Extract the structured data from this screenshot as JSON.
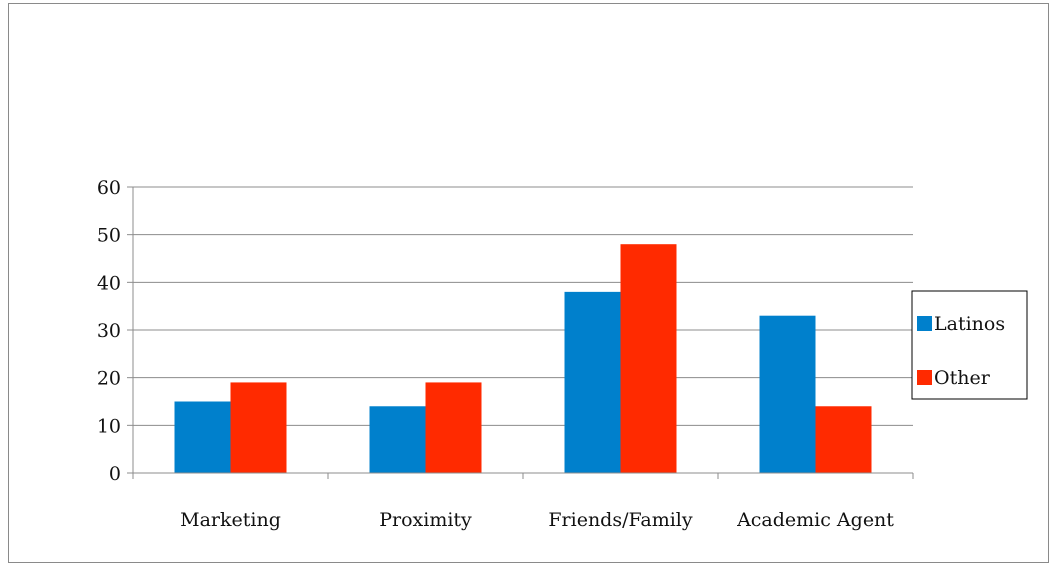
{
  "chart_data": {
    "type": "bar",
    "categories": [
      "Marketing",
      "Proximity",
      "Friends/Family",
      "Academic Agent"
    ],
    "series": [
      {
        "name": "Latinos",
        "values": [
          15,
          14,
          38,
          33
        ],
        "color": "#0080cc"
      },
      {
        "name": "Other",
        "values": [
          19,
          19,
          48,
          14
        ],
        "color": "#ff2a00"
      }
    ],
    "ylim": [
      0,
      60
    ],
    "yticks": [
      0,
      10,
      20,
      30,
      40,
      50,
      60
    ],
    "grid": true,
    "legend": "right",
    "title": "",
    "xlabel": "",
    "ylabel": ""
  }
}
